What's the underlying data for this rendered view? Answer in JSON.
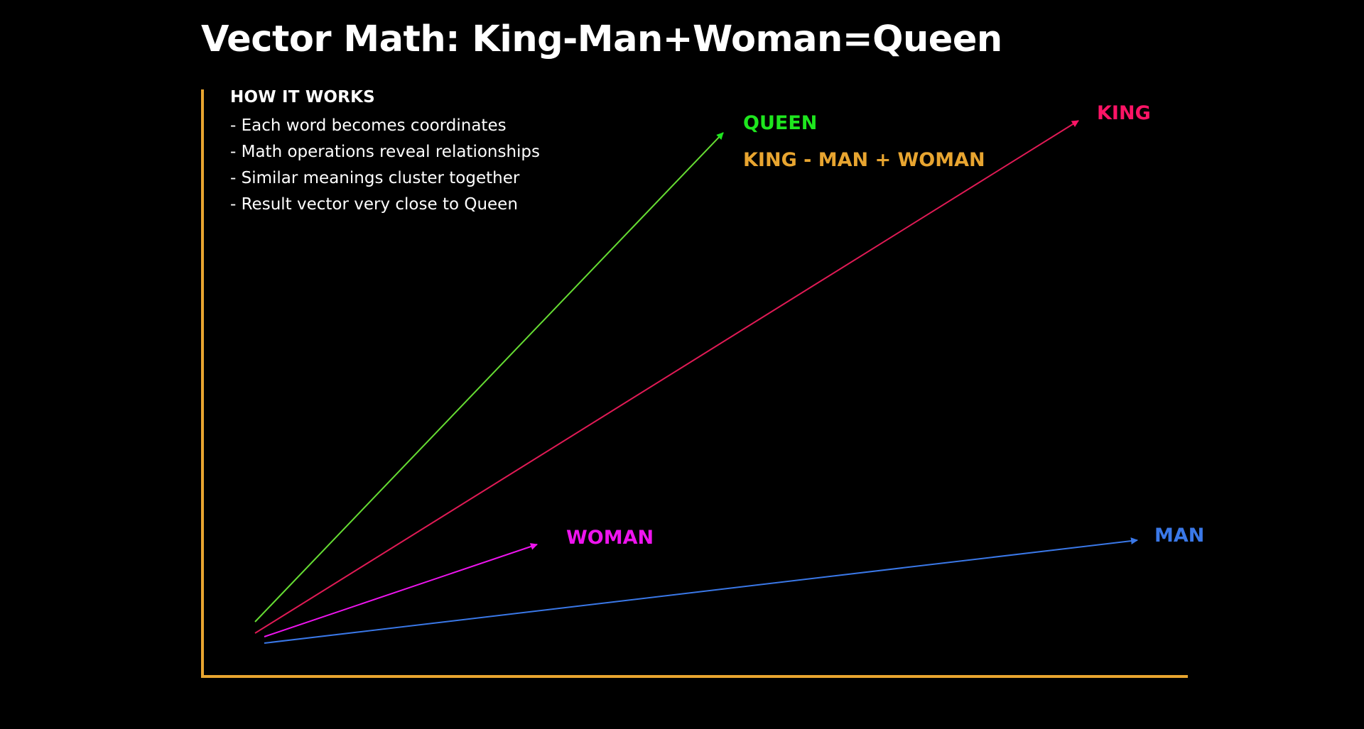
{
  "title": "Vector Math: King-Man+Woman=Queen",
  "how_it_works": {
    "heading": "HOW IT WORKS",
    "items": [
      "- Each word becomes coordinates",
      "- Math operations reveal relationships",
      "- Similar meanings cluster together",
      "- Result vector very close to Queen"
    ]
  },
  "colors": {
    "background": "#000000",
    "axis": "#e8a530",
    "text": "#ffffff",
    "queen": "#1ee61e",
    "queen_line": "#66dd33",
    "king": "#ff1466",
    "king_line": "#e01a55",
    "woman": "#ee14ee",
    "man": "#3a78e8",
    "formula": "#e8a530"
  },
  "vectors": {
    "queen": {
      "label": "QUEEN",
      "icon": "arrow-head"
    },
    "king": {
      "label": "KING",
      "icon": "arrow-head"
    },
    "woman": {
      "label": "WOMAN",
      "icon": "arrow-head"
    },
    "man": {
      "label": "MAN",
      "icon": "arrow-head"
    }
  },
  "formula": "KING - MAN + WOMAN"
}
